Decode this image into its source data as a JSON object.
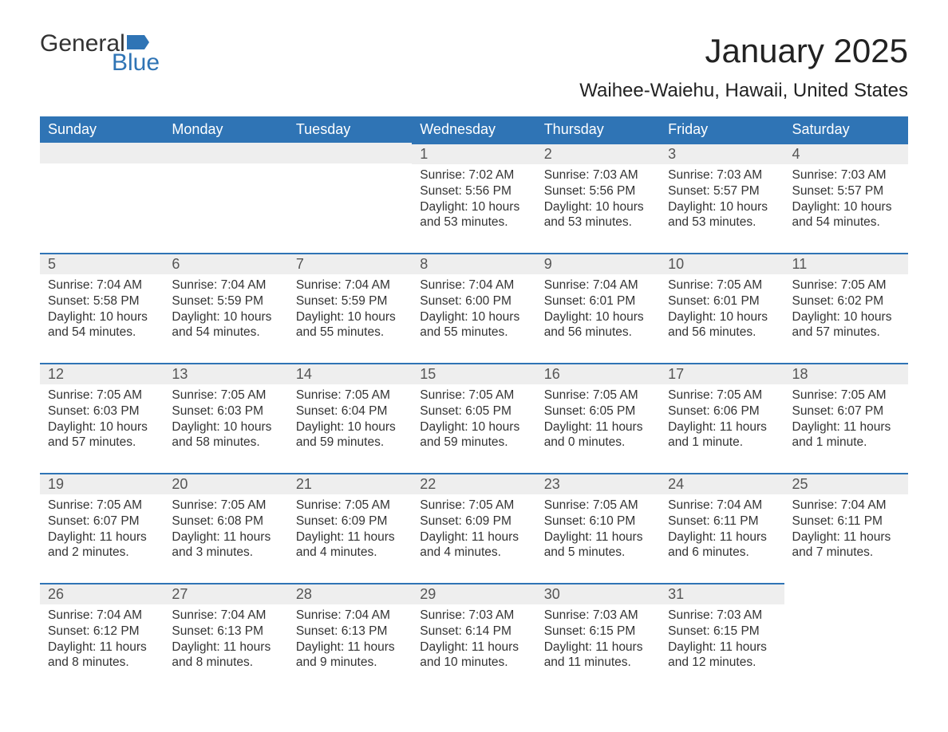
{
  "brand": {
    "word1": "General",
    "word2": "Blue",
    "flag_color": "#2f74b5"
  },
  "title": "January 2025",
  "subtitle": "Waihee-Waiehu, Hawaii, United States",
  "colors": {
    "header_bg": "#2f74b5",
    "header_text": "#ffffff",
    "daynum_bg": "#eeeeee",
    "daynum_border": "#2f74b5",
    "page_bg": "#ffffff",
    "body_text": "#333333"
  },
  "typography": {
    "title_fontsize": 42,
    "subtitle_fontsize": 24,
    "header_fontsize": 18,
    "daynum_fontsize": 18,
    "body_fontsize": 15.5
  },
  "days_of_week": [
    "Sunday",
    "Monday",
    "Tuesday",
    "Wednesday",
    "Thursday",
    "Friday",
    "Saturday"
  ],
  "weeks": [
    [
      {
        "blank": true
      },
      {
        "blank": true
      },
      {
        "blank": true
      },
      {
        "n": "1",
        "sunrise": "Sunrise: 7:02 AM",
        "sunset": "Sunset: 5:56 PM",
        "dl1": "Daylight: 10 hours",
        "dl2": "and 53 minutes."
      },
      {
        "n": "2",
        "sunrise": "Sunrise: 7:03 AM",
        "sunset": "Sunset: 5:56 PM",
        "dl1": "Daylight: 10 hours",
        "dl2": "and 53 minutes."
      },
      {
        "n": "3",
        "sunrise": "Sunrise: 7:03 AM",
        "sunset": "Sunset: 5:57 PM",
        "dl1": "Daylight: 10 hours",
        "dl2": "and 53 minutes."
      },
      {
        "n": "4",
        "sunrise": "Sunrise: 7:03 AM",
        "sunset": "Sunset: 5:57 PM",
        "dl1": "Daylight: 10 hours",
        "dl2": "and 54 minutes."
      }
    ],
    [
      {
        "n": "5",
        "sunrise": "Sunrise: 7:04 AM",
        "sunset": "Sunset: 5:58 PM",
        "dl1": "Daylight: 10 hours",
        "dl2": "and 54 minutes."
      },
      {
        "n": "6",
        "sunrise": "Sunrise: 7:04 AM",
        "sunset": "Sunset: 5:59 PM",
        "dl1": "Daylight: 10 hours",
        "dl2": "and 54 minutes."
      },
      {
        "n": "7",
        "sunrise": "Sunrise: 7:04 AM",
        "sunset": "Sunset: 5:59 PM",
        "dl1": "Daylight: 10 hours",
        "dl2": "and 55 minutes."
      },
      {
        "n": "8",
        "sunrise": "Sunrise: 7:04 AM",
        "sunset": "Sunset: 6:00 PM",
        "dl1": "Daylight: 10 hours",
        "dl2": "and 55 minutes."
      },
      {
        "n": "9",
        "sunrise": "Sunrise: 7:04 AM",
        "sunset": "Sunset: 6:01 PM",
        "dl1": "Daylight: 10 hours",
        "dl2": "and 56 minutes."
      },
      {
        "n": "10",
        "sunrise": "Sunrise: 7:05 AM",
        "sunset": "Sunset: 6:01 PM",
        "dl1": "Daylight: 10 hours",
        "dl2": "and 56 minutes."
      },
      {
        "n": "11",
        "sunrise": "Sunrise: 7:05 AM",
        "sunset": "Sunset: 6:02 PM",
        "dl1": "Daylight: 10 hours",
        "dl2": "and 57 minutes."
      }
    ],
    [
      {
        "n": "12",
        "sunrise": "Sunrise: 7:05 AM",
        "sunset": "Sunset: 6:03 PM",
        "dl1": "Daylight: 10 hours",
        "dl2": "and 57 minutes."
      },
      {
        "n": "13",
        "sunrise": "Sunrise: 7:05 AM",
        "sunset": "Sunset: 6:03 PM",
        "dl1": "Daylight: 10 hours",
        "dl2": "and 58 minutes."
      },
      {
        "n": "14",
        "sunrise": "Sunrise: 7:05 AM",
        "sunset": "Sunset: 6:04 PM",
        "dl1": "Daylight: 10 hours",
        "dl2": "and 59 minutes."
      },
      {
        "n": "15",
        "sunrise": "Sunrise: 7:05 AM",
        "sunset": "Sunset: 6:05 PM",
        "dl1": "Daylight: 10 hours",
        "dl2": "and 59 minutes."
      },
      {
        "n": "16",
        "sunrise": "Sunrise: 7:05 AM",
        "sunset": "Sunset: 6:05 PM",
        "dl1": "Daylight: 11 hours",
        "dl2": "and 0 minutes."
      },
      {
        "n": "17",
        "sunrise": "Sunrise: 7:05 AM",
        "sunset": "Sunset: 6:06 PM",
        "dl1": "Daylight: 11 hours",
        "dl2": "and 1 minute."
      },
      {
        "n": "18",
        "sunrise": "Sunrise: 7:05 AM",
        "sunset": "Sunset: 6:07 PM",
        "dl1": "Daylight: 11 hours",
        "dl2": "and 1 minute."
      }
    ],
    [
      {
        "n": "19",
        "sunrise": "Sunrise: 7:05 AM",
        "sunset": "Sunset: 6:07 PM",
        "dl1": "Daylight: 11 hours",
        "dl2": "and 2 minutes."
      },
      {
        "n": "20",
        "sunrise": "Sunrise: 7:05 AM",
        "sunset": "Sunset: 6:08 PM",
        "dl1": "Daylight: 11 hours",
        "dl2": "and 3 minutes."
      },
      {
        "n": "21",
        "sunrise": "Sunrise: 7:05 AM",
        "sunset": "Sunset: 6:09 PM",
        "dl1": "Daylight: 11 hours",
        "dl2": "and 4 minutes."
      },
      {
        "n": "22",
        "sunrise": "Sunrise: 7:05 AM",
        "sunset": "Sunset: 6:09 PM",
        "dl1": "Daylight: 11 hours",
        "dl2": "and 4 minutes."
      },
      {
        "n": "23",
        "sunrise": "Sunrise: 7:05 AM",
        "sunset": "Sunset: 6:10 PM",
        "dl1": "Daylight: 11 hours",
        "dl2": "and 5 minutes."
      },
      {
        "n": "24",
        "sunrise": "Sunrise: 7:04 AM",
        "sunset": "Sunset: 6:11 PM",
        "dl1": "Daylight: 11 hours",
        "dl2": "and 6 minutes."
      },
      {
        "n": "25",
        "sunrise": "Sunrise: 7:04 AM",
        "sunset": "Sunset: 6:11 PM",
        "dl1": "Daylight: 11 hours",
        "dl2": "and 7 minutes."
      }
    ],
    [
      {
        "n": "26",
        "sunrise": "Sunrise: 7:04 AM",
        "sunset": "Sunset: 6:12 PM",
        "dl1": "Daylight: 11 hours",
        "dl2": "and 8 minutes."
      },
      {
        "n": "27",
        "sunrise": "Sunrise: 7:04 AM",
        "sunset": "Sunset: 6:13 PM",
        "dl1": "Daylight: 11 hours",
        "dl2": "and 8 minutes."
      },
      {
        "n": "28",
        "sunrise": "Sunrise: 7:04 AM",
        "sunset": "Sunset: 6:13 PM",
        "dl1": "Daylight: 11 hours",
        "dl2": "and 9 minutes."
      },
      {
        "n": "29",
        "sunrise": "Sunrise: 7:03 AM",
        "sunset": "Sunset: 6:14 PM",
        "dl1": "Daylight: 11 hours",
        "dl2": "and 10 minutes."
      },
      {
        "n": "30",
        "sunrise": "Sunrise: 7:03 AM",
        "sunset": "Sunset: 6:15 PM",
        "dl1": "Daylight: 11 hours",
        "dl2": "and 11 minutes."
      },
      {
        "n": "31",
        "sunrise": "Sunrise: 7:03 AM",
        "sunset": "Sunset: 6:15 PM",
        "dl1": "Daylight: 11 hours",
        "dl2": "and 12 minutes."
      },
      {
        "blank": true,
        "trailing": true
      }
    ]
  ]
}
